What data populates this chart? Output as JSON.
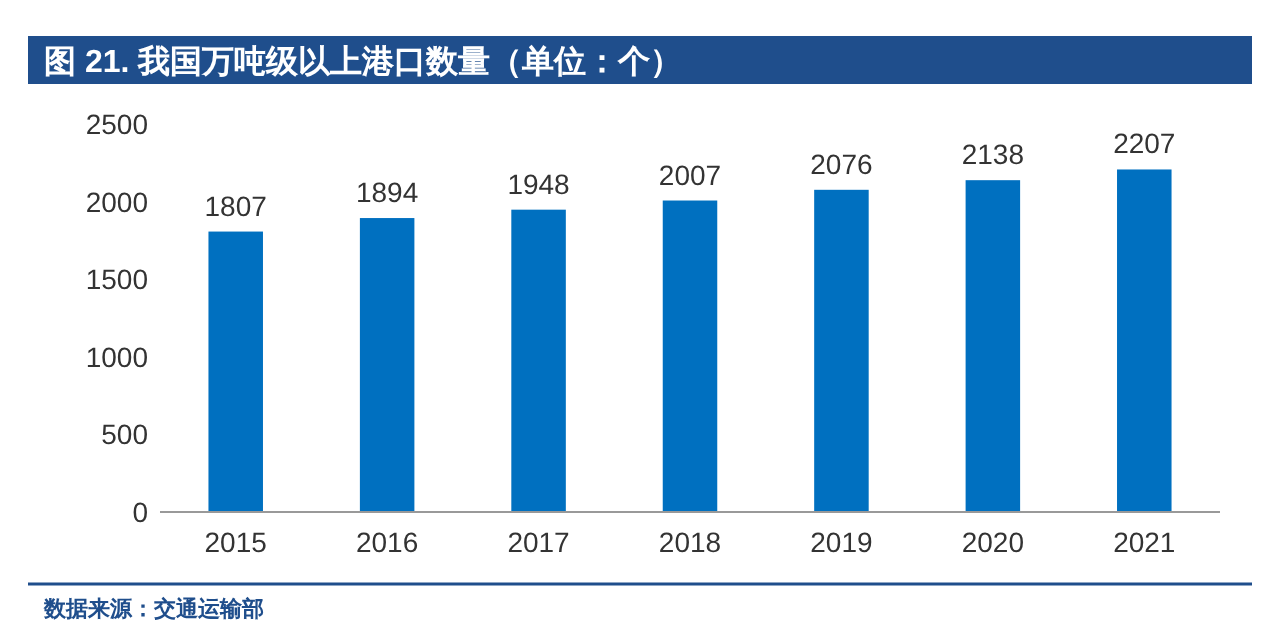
{
  "chart_data": {
    "type": "bar",
    "title": "图 21. 我国万吨级以上港口数量（单位：个）",
    "categories": [
      "2015",
      "2016",
      "2017",
      "2018",
      "2019",
      "2020",
      "2021"
    ],
    "values": [
      1807,
      1894,
      1948,
      2007,
      2076,
      2138,
      2207
    ],
    "color": "#0070c0",
    "ylim": [
      0,
      2500
    ],
    "yticks": [
      0,
      500,
      1000,
      1500,
      2000,
      2500
    ],
    "data_labels": true,
    "annotations": [
      "数据来源：交通运输部"
    ]
  }
}
